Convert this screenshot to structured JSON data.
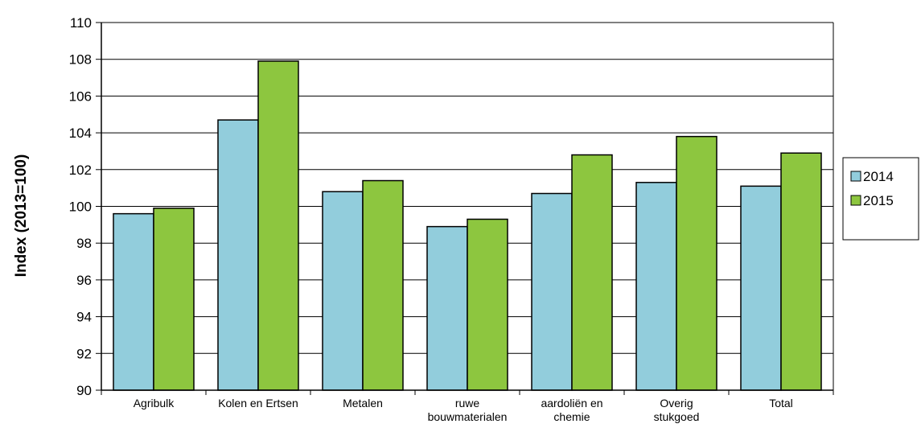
{
  "chart_data": {
    "type": "bar",
    "ylabel": "Index (2013=100)",
    "ylim": [
      90,
      110
    ],
    "yticks": [
      90,
      92,
      94,
      96,
      98,
      100,
      102,
      104,
      106,
      108,
      110
    ],
    "grid": true,
    "legend_position": "right",
    "categories": [
      [
        "Agribulk"
      ],
      [
        "Kolen en Ertsen"
      ],
      [
        "Metalen"
      ],
      [
        "ruwe",
        "bouwmaterialen"
      ],
      [
        "aardoliën en",
        "chemie"
      ],
      [
        "Overig",
        "stukgoed"
      ],
      [
        "Total"
      ]
    ],
    "series": [
      {
        "name": "2014",
        "color": "#92cddc",
        "values": [
          99.6,
          104.7,
          100.8,
          98.9,
          100.7,
          101.3,
          101.1
        ]
      },
      {
        "name": "2015",
        "color": "#8dc63f",
        "values": [
          99.9,
          107.9,
          101.4,
          99.3,
          102.8,
          103.8,
          102.9
        ]
      }
    ]
  }
}
